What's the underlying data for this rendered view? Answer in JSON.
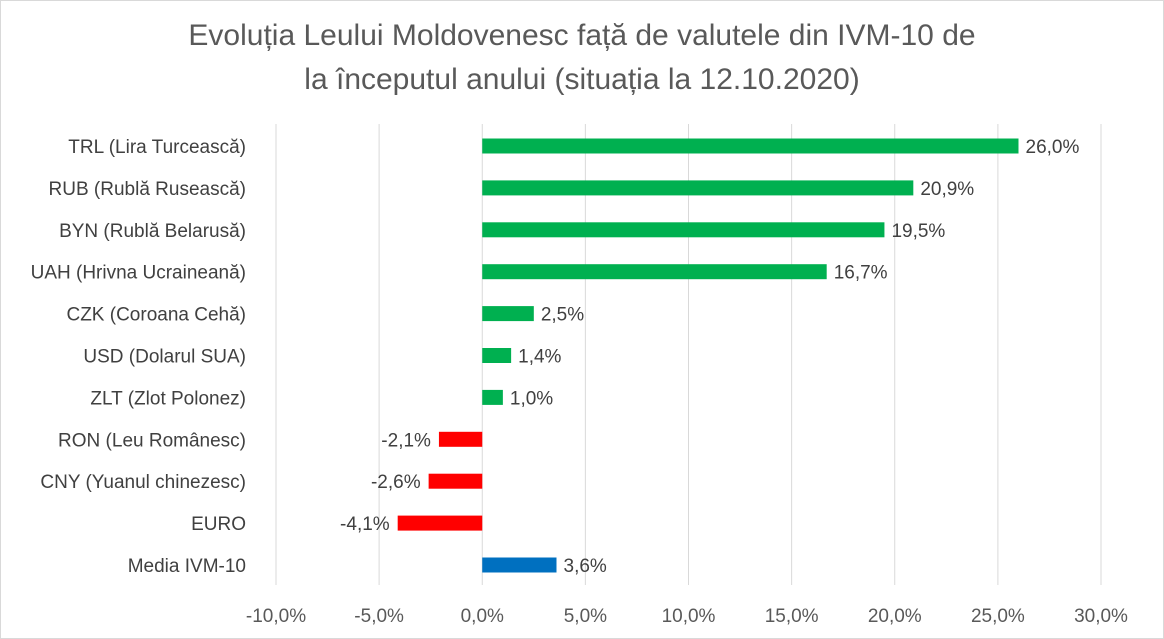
{
  "chart_data": {
    "type": "bar",
    "orientation": "horizontal",
    "title_line1": "Evoluția Leului Moldovenesc față de valutele din IVM-10 de",
    "title_line2": "la începutul anului (situația la 12.10.2020)",
    "categories": [
      "TRL (Lira Turcească)",
      "RUB (Rublă Rusească)",
      "BYN (Rublă Belarusă)",
      "UAH (Hrivna Ucraineană)",
      "CZK (Coroana Cehă)",
      "USD (Dolarul SUA)",
      "ZLT (Zlot Polonez)",
      "RON (Leu Românesc)",
      "CNY (Yuanul chinezesc)",
      "EURO",
      "Media IVM-10"
    ],
    "values": [
      26.0,
      20.9,
      19.5,
      16.7,
      2.5,
      1.4,
      1.0,
      -2.1,
      -2.6,
      -4.1,
      3.6
    ],
    "data_labels": [
      "26,0%",
      "20,9%",
      "19,5%",
      "16,7%",
      "2,5%",
      "1,4%",
      "1,0%",
      "-2,1%",
      "-2,6%",
      "-4,1%",
      "3,6%"
    ],
    "xlim": [
      -10,
      30
    ],
    "xticks": [
      -10,
      -5,
      0,
      5,
      10,
      15,
      20,
      25,
      30
    ],
    "xtick_labels": [
      "-10,0%",
      "-5,0%",
      "0,0%",
      "5,0%",
      "10,0%",
      "15,0%",
      "20,0%",
      "25,0%",
      "30,0%"
    ],
    "grid": true,
    "legend": "none",
    "colors": {
      "positive": "#00b050",
      "negative": "#ff0000",
      "average": "#0070c0",
      "grid": "#d9d9d9",
      "title": "#595959"
    }
  }
}
